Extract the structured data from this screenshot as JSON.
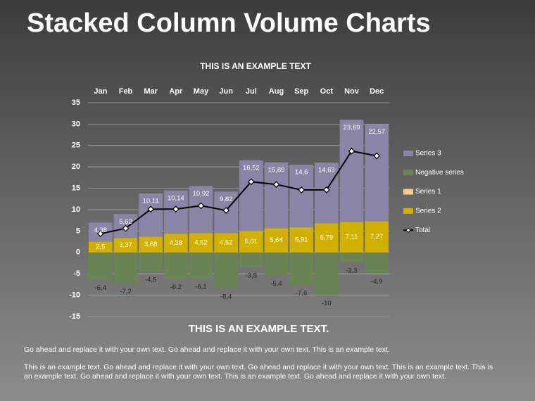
{
  "slide": {
    "title": "Stacked Column Volume Charts",
    "subtitle": "THIS IS AN EXAMPLE TEXT.",
    "paragraphs": [
      "Go ahead and replace it with your own text. Go ahead and replace it with your own text. This is an example text.",
      "This is an example text. Go ahead and replace it with your own text. Go ahead and replace it with your own text. This is an example text. This is an example text. Go ahead and replace it with your own text. This is an example text. Go ahead and replace it with your own text."
    ]
  },
  "chart_data": {
    "type": "bar",
    "stacked": true,
    "title": "THIS IS AN EXAMPLE TEXT",
    "categories": [
      "Jan",
      "Feb",
      "Mar",
      "Apr",
      "May",
      "Jun",
      "Jul",
      "Aug",
      "Sep",
      "Oct",
      "Nov",
      "Dec"
    ],
    "series": [
      {
        "name": "Series 2",
        "color": "#d2b000",
        "values": [
          2.5,
          3.37,
          3.68,
          4.38,
          4.52,
          4.52,
          5.01,
          5.64,
          5.91,
          6.79,
          7.11,
          7.27
        ],
        "value_labels": [
          "2,5",
          "3,37",
          "3,68",
          "4,38",
          "4,52",
          "4,52",
          "5,01",
          "5,64",
          "5,91",
          "6,79",
          "7,11",
          "7,27"
        ]
      },
      {
        "name": "Series 1",
        "color": "#f3cf86",
        "values": [
          0,
          0,
          0,
          0,
          0,
          0,
          0,
          0,
          0,
          0,
          0,
          0
        ]
      },
      {
        "name": "Negative series",
        "color": "#6b8455",
        "values": [
          -6.4,
          -7.2,
          -4.5,
          -6.2,
          -6.1,
          -8.4,
          -3.5,
          -5.4,
          -7.6,
          -10,
          -2.3,
          -4.9
        ],
        "value_labels": [
          "-6,4",
          "-7,2",
          "-4,5",
          "-6,2",
          "-6,1",
          "-8,4",
          "-3,5",
          "-5,4",
          "-7,6",
          "-10",
          "-2,3",
          "-4,9"
        ]
      },
      {
        "name": "Series 3",
        "color": "#8a84a6",
        "values": [
          4.5,
          5.6,
          10.1,
          10.1,
          11,
          9.7,
          16.5,
          15.4,
          14.6,
          14.2,
          23.9,
          22.7
        ]
      },
      {
        "name": "Total",
        "type": "line",
        "color": "#000000",
        "values": [
          4.38,
          5.62,
          10.11,
          10.14,
          10.92,
          9.82,
          16.52,
          15.89,
          14.6,
          14.63,
          23.69,
          22.57
        ],
        "value_labels": [
          "4,38",
          "5,62",
          "10,11",
          "10,14",
          "10,92",
          "9,82",
          "16,52",
          "15,89",
          "14,6",
          "14,63",
          "23,69",
          "22,57"
        ]
      }
    ],
    "ylim": [
      -15,
      35
    ],
    "yticks": [
      -15,
      -10,
      -5,
      0,
      5,
      10,
      15,
      20,
      25,
      30,
      35
    ],
    "grid": true,
    "legend": "right"
  }
}
